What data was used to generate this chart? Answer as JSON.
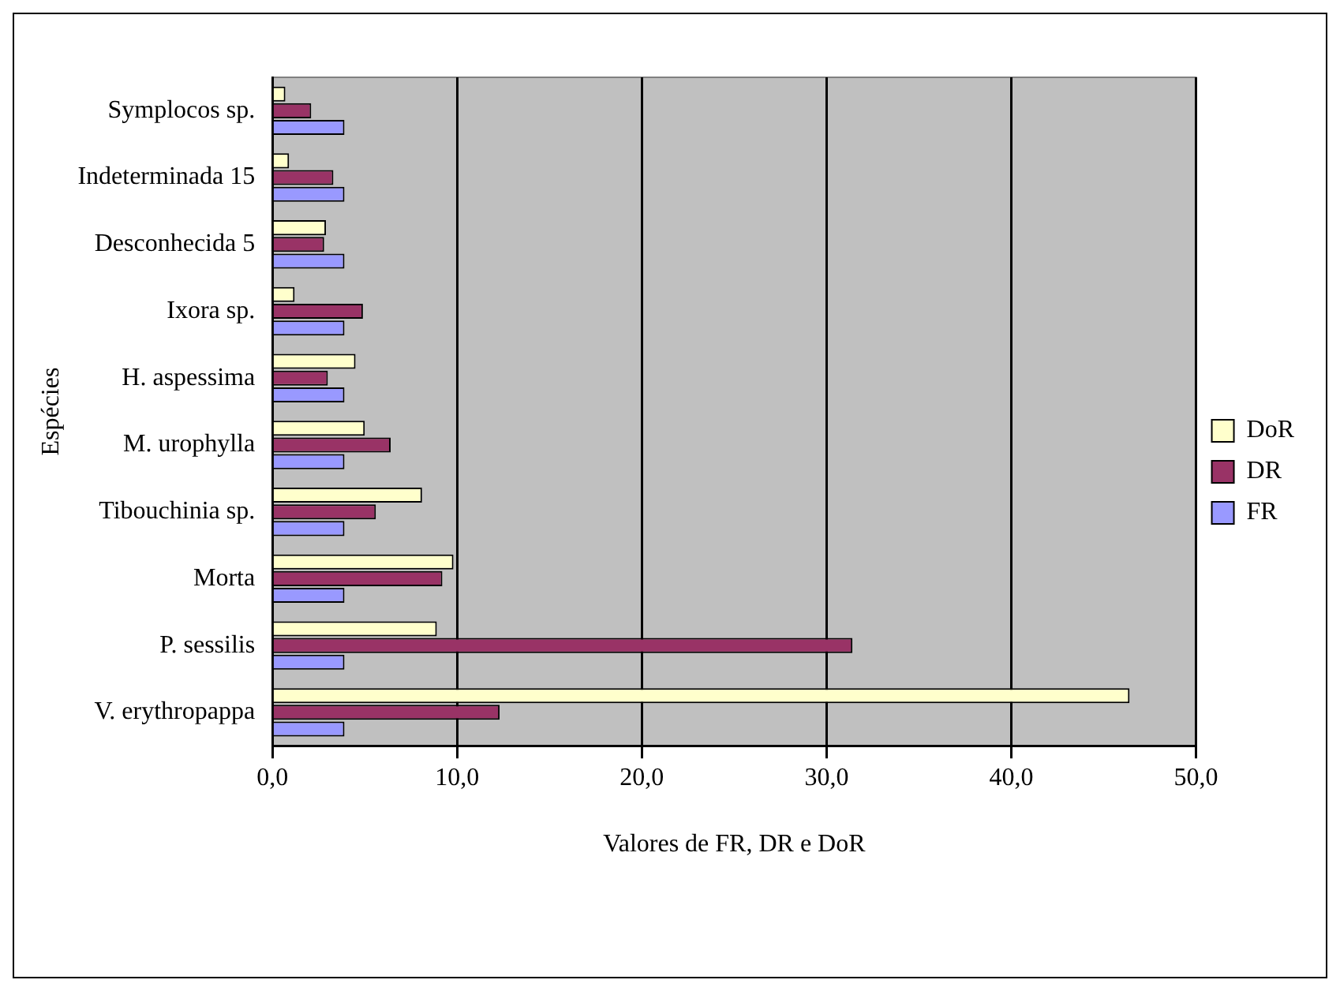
{
  "chart_data": {
    "type": "bar",
    "orientation": "horizontal",
    "ylabel": "Espécies",
    "xlabel": "Valores de FR, DR e DoR",
    "categories": [
      "Symplocos sp.",
      "Indeterminada 15",
      "Desconhecida 5",
      "Ixora sp.",
      "H. aspessima",
      "M. urophylla",
      "Tibouchinia sp.",
      "Morta",
      "P. sessilis",
      "V. erythropappa"
    ],
    "series": [
      {
        "name": "DoR",
        "color": "#ffffcc",
        "values": [
          0.7,
          0.9,
          2.9,
          1.2,
          4.5,
          5.0,
          8.1,
          9.8,
          8.9,
          46.4
        ]
      },
      {
        "name": "DR",
        "color": "#993366",
        "values": [
          2.1,
          3.3,
          2.8,
          4.9,
          3.0,
          6.4,
          5.6,
          9.2,
          31.4,
          12.3
        ]
      },
      {
        "name": "FR",
        "color": "#9999ff",
        "values": [
          3.9,
          3.9,
          3.9,
          3.9,
          3.9,
          3.9,
          3.9,
          3.9,
          3.9,
          3.9
        ]
      }
    ],
    "xlim": [
      0,
      50
    ],
    "xticks": [
      {
        "value": 0,
        "label": "0,0"
      },
      {
        "value": 10,
        "label": "10,0"
      },
      {
        "value": 20,
        "label": "20,0"
      },
      {
        "value": 30,
        "label": "30,0"
      },
      {
        "value": 40,
        "label": "40,0"
      },
      {
        "value": 50,
        "label": "50,0"
      }
    ],
    "grid": "x",
    "legend": "right"
  }
}
